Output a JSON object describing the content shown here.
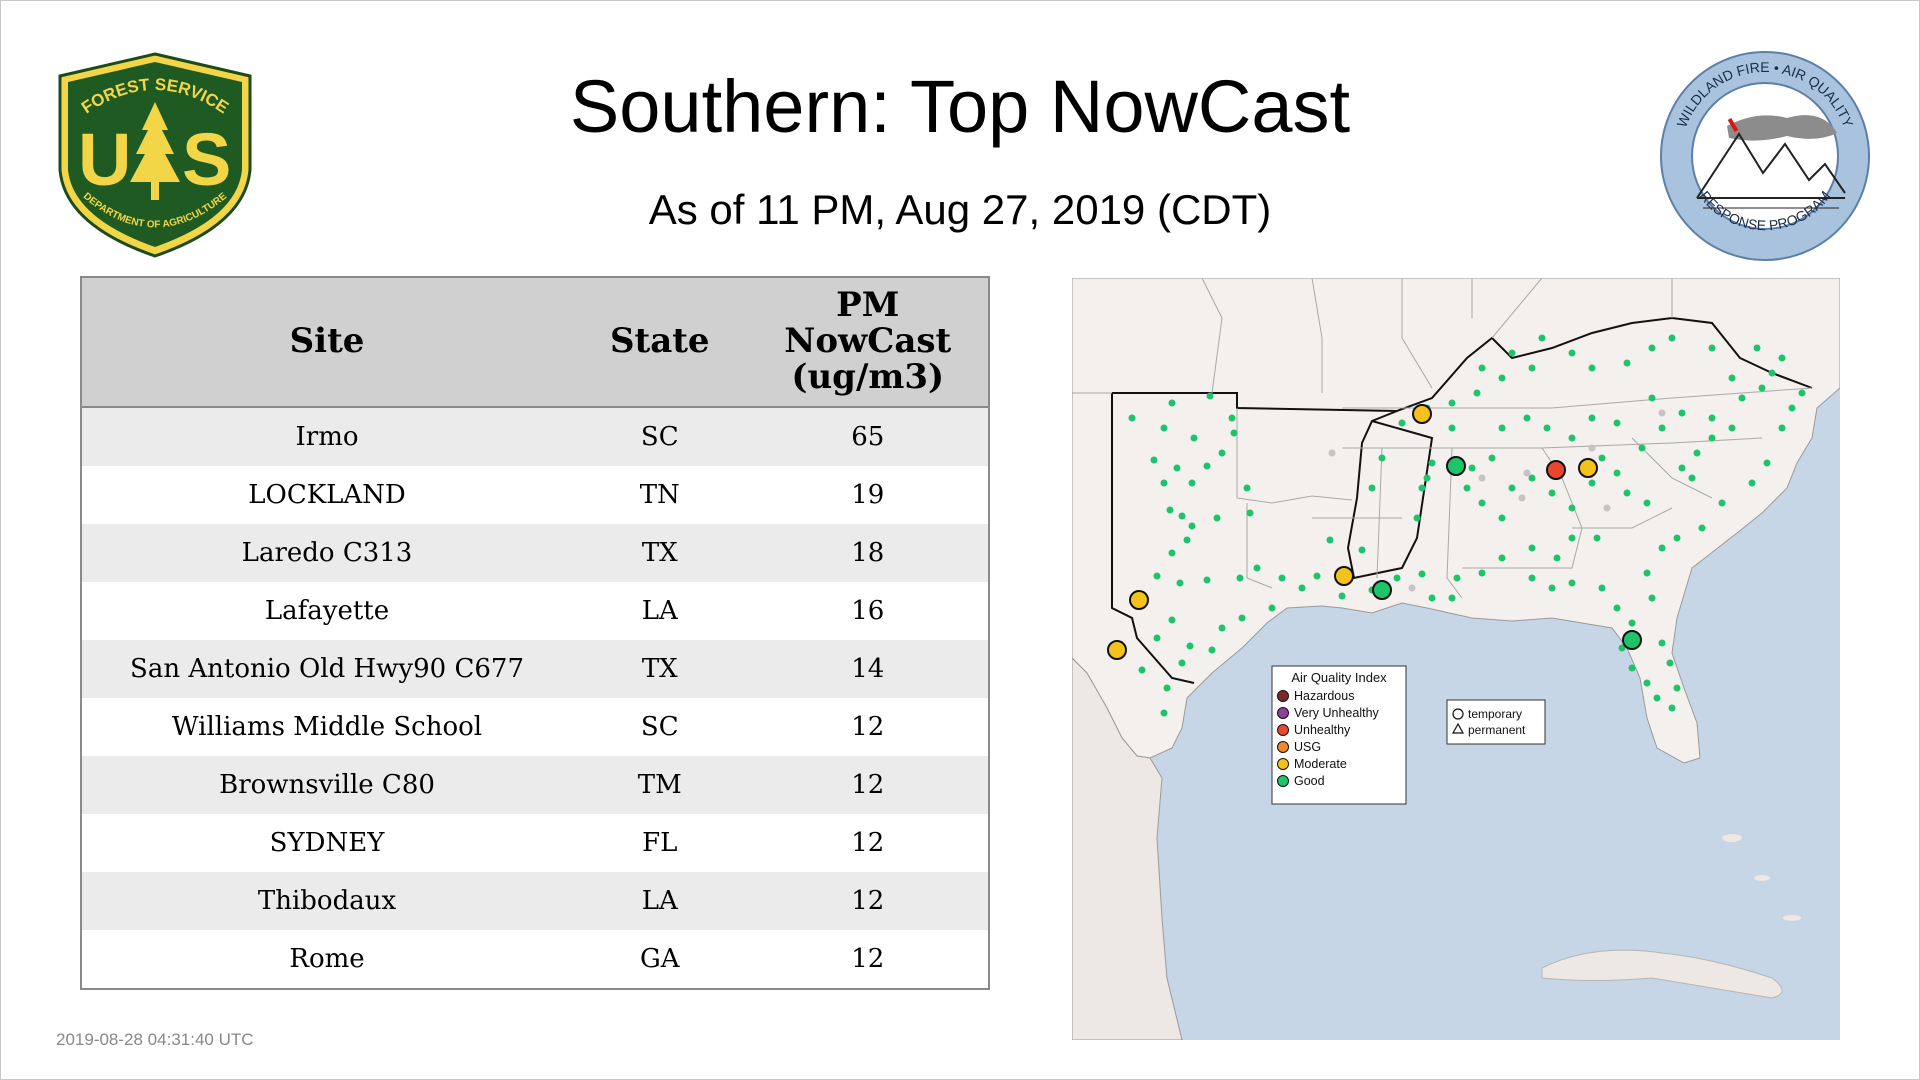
{
  "header": {
    "title": "Southern: Top NowCast",
    "subtitle": "As of 11 PM, Aug 27, 2019 (CDT)"
  },
  "logos": {
    "left": {
      "top_text": "FOREST SERVICE",
      "letters": "US",
      "bottom_text": "DEPARTMENT OF AGRICULTURE"
    },
    "right": {
      "ring_top": "WILDLAND FIRE • AIR QUALITY",
      "ring_bottom": "RESPONSE PROGRAM"
    }
  },
  "table": {
    "headers": {
      "site": "Site",
      "state": "State",
      "pm_line1": "PM",
      "pm_line2": "NowCast",
      "pm_line3": "(ug/m3)"
    },
    "rows": [
      {
        "site": "Irmo",
        "state": "SC",
        "value": "65"
      },
      {
        "site": "LOCKLAND",
        "state": "TN",
        "value": "19"
      },
      {
        "site": "Laredo C313",
        "state": "TX",
        "value": "18"
      },
      {
        "site": "Lafayette",
        "state": "LA",
        "value": "16"
      },
      {
        "site": "San Antonio Old Hwy90 C677",
        "state": "TX",
        "value": "14"
      },
      {
        "site": "Williams Middle School",
        "state": "SC",
        "value": "12"
      },
      {
        "site": "Brownsville C80",
        "state": "TM",
        "value": "12"
      },
      {
        "site": "SYDNEY",
        "state": "FL",
        "value": "12"
      },
      {
        "site": "Thibodaux",
        "state": "LA",
        "value": "12"
      },
      {
        "site": "Rome",
        "state": "GA",
        "value": "12"
      }
    ]
  },
  "map": {
    "legend": {
      "title": "Air Quality Index",
      "items": [
        {
          "label": "Hazardous",
          "color": "#7e2a2a"
        },
        {
          "label": "Very Unhealthy",
          "color": "#8f3f97"
        },
        {
          "label": "Unhealthy",
          "color": "#e8472b"
        },
        {
          "label": "USG",
          "color": "#f0892b"
        },
        {
          "label": "Moderate",
          "color": "#f4c21b"
        },
        {
          "label": "Good",
          "color": "#1ec46a"
        }
      ]
    },
    "shape_legend": {
      "temporary": "temporary",
      "permanent": "permanent"
    },
    "colors": {
      "water": "#c6d6e6",
      "land": "#f3f0ee",
      "good": "#1ec46a",
      "moderate": "#f4c21b",
      "unhealthy": "#e8472b"
    }
  },
  "timestamp": "2019-08-28 04:31:40 UTC"
}
